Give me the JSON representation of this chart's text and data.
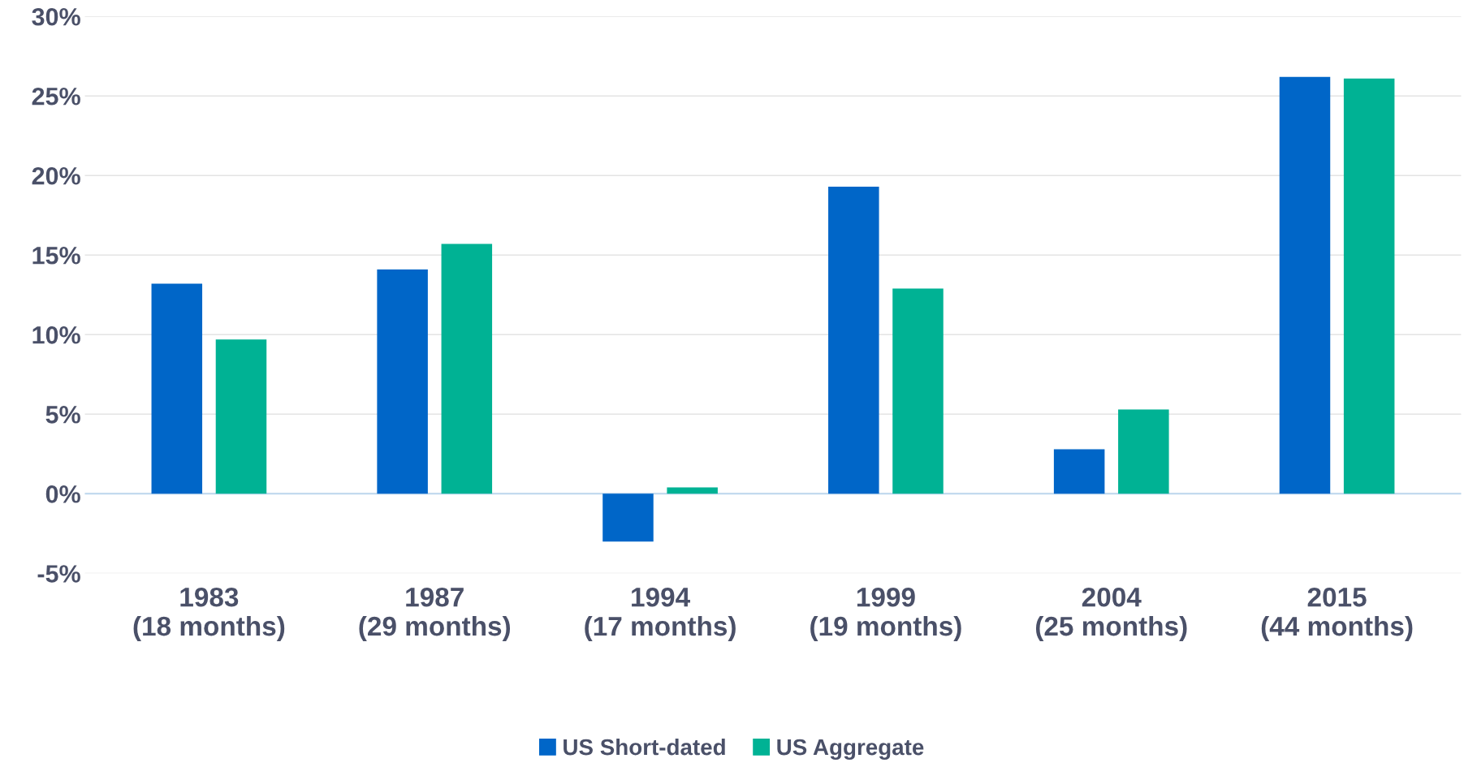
{
  "chart_data": {
    "type": "bar",
    "categories": [
      "1983\n(18 months)",
      "1987\n(29 months)",
      "1994\n(17 months)",
      "1999\n(19 months)",
      "2004\n(25 months)",
      "2015\n(44 months)"
    ],
    "series": [
      {
        "name": "US Short-dated",
        "color": "#0066c8",
        "values": [
          13.2,
          14.1,
          -3.0,
          19.3,
          2.8,
          26.2
        ]
      },
      {
        "name": "US Aggregate",
        "color": "#00b294",
        "values": [
          9.7,
          15.7,
          0.4,
          12.9,
          5.3,
          26.1
        ]
      }
    ],
    "ylim": [
      -5,
      30
    ],
    "yticks": [
      {
        "value": -5,
        "label": "-5%"
      },
      {
        "value": 0,
        "label": "0%"
      },
      {
        "value": 5,
        "label": "5%"
      },
      {
        "value": 10,
        "label": "10%"
      },
      {
        "value": 15,
        "label": "15%"
      },
      {
        "value": 20,
        "label": "20%"
      },
      {
        "value": 25,
        "label": "25%"
      },
      {
        "value": 30,
        "label": "30%"
      }
    ],
    "ref_lines": [
      {
        "axis": "y",
        "value": 0,
        "color": "#bdd7ee"
      }
    ],
    "grid": "y",
    "legend": "bottom"
  }
}
